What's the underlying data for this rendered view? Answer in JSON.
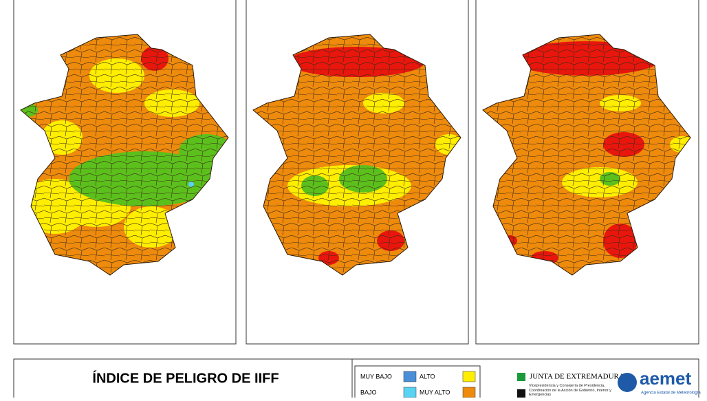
{
  "title": "ÍNDICE DE PELIGRO DE IIFF",
  "legend": [
    {
      "label": "MUY BAJO",
      "color": "#4a8fd8"
    },
    {
      "label": "ALTO",
      "color": "#ffee00"
    },
    {
      "label": "BAJO",
      "color": "#5ad2f2"
    },
    {
      "label": "MUY ALTO",
      "color": "#ee8a0c"
    }
  ],
  "logos": {
    "junta": "JUNTA DE EXTREMADURA",
    "junta_sub": "Vicepresidencia y Consejería de Presidencia, Coordinación de la Acción de Gobierno, Interior y Emergencias",
    "aemet": "aemet",
    "aemet_sub": "Agencia Estatal de Meteorología"
  }
}
